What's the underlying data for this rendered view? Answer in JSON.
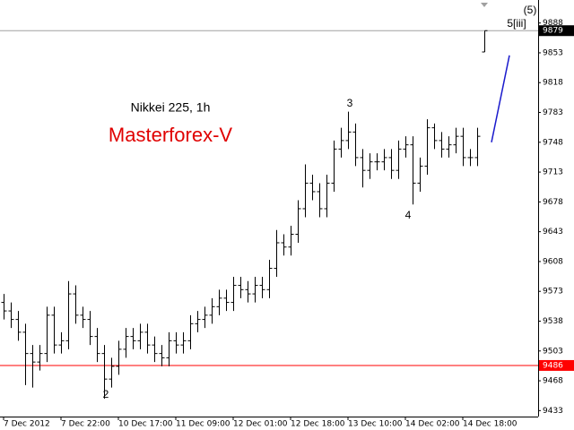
{
  "chart_data": {
    "type": "ohlc",
    "title": "Nikkei 225, 1h",
    "subtitle": "Masterforex-V",
    "annotations": [
      "2",
      "3",
      "4",
      "5[iii]",
      "(5)"
    ],
    "ylim": [
      9426,
      9915
    ],
    "yticks": [
      9888,
      9853,
      9818,
      9783,
      9748,
      9713,
      9678,
      9643,
      9608,
      9573,
      9538,
      9503,
      9468,
      9433
    ],
    "color": "#000000",
    "hline": {
      "value": 9486,
      "color": "#ff0000"
    },
    "last_line_color": "#a0a0a0",
    "forecast_line": {
      "color": "#1a1acc",
      "x": [
        68,
        70.5
      ],
      "y": [
        9748,
        9850
      ]
    },
    "categories": [
      "7 Dec 2012",
      null,
      null,
      null,
      null,
      null,
      null,
      null,
      "7 Dec 22:00",
      null,
      null,
      null,
      null,
      null,
      null,
      null,
      "10 Dec 17:00",
      null,
      null,
      null,
      null,
      null,
      null,
      null,
      "11 Dec 09:00",
      null,
      null,
      null,
      null,
      null,
      null,
      null,
      "12 Dec 01:00",
      null,
      null,
      null,
      null,
      null,
      null,
      null,
      "12 Dec 18:00",
      null,
      null,
      null,
      null,
      null,
      null,
      null,
      "13 Dec 10:00",
      null,
      null,
      null,
      null,
      null,
      null,
      null,
      "14 Dec 02:00",
      null,
      null,
      null,
      null,
      null,
      null,
      null,
      "14 Dec 18:00",
      null,
      null,
      null
    ],
    "open": [
      9560,
      9550,
      9540,
      9525,
      9500,
      9490,
      9500,
      9545,
      9510,
      9515,
      9570,
      9545,
      9540,
      9520,
      9500,
      9470,
      9485,
      9505,
      9520,
      9515,
      9525,
      9510,
      9500,
      9495,
      9515,
      9510,
      9515,
      9535,
      9540,
      9545,
      9555,
      9565,
      9560,
      9580,
      9575,
      9570,
      9580,
      9575,
      9600,
      9630,
      9625,
      9640,
      9670,
      9700,
      9690,
      9670,
      9700,
      9740,
      9750,
      9760,
      9730,
      9715,
      9725,
      9725,
      9730,
      9715,
      9740,
      9745,
      9700,
      9720,
      9765,
      9750,
      9740,
      9745,
      9755,
      9730,
      9730,
      9854
    ],
    "high": [
      9570,
      9560,
      9550,
      9535,
      9510,
      9510,
      9555,
      9555,
      9525,
      9585,
      9580,
      9555,
      9550,
      9530,
      9510,
      9495,
      9515,
      9530,
      9530,
      9535,
      9535,
      9520,
      9510,
      9525,
      9525,
      9525,
      9545,
      9550,
      9555,
      9565,
      9575,
      9575,
      9590,
      9590,
      9585,
      9590,
      9590,
      9610,
      9645,
      9640,
      9650,
      9680,
      9722,
      9710,
      9700,
      9710,
      9750,
      9765,
      9784,
      9770,
      9740,
      9735,
      9735,
      9740,
      9740,
      9750,
      9755,
      9755,
      9730,
      9775,
      9770,
      9760,
      9755,
      9765,
      9765,
      9740,
      9765,
      9879
    ],
    "low": [
      9540,
      9530,
      9515,
      9463,
      9460,
      9480,
      9490,
      9500,
      9500,
      9505,
      9535,
      9530,
      9510,
      9490,
      9447,
      9460,
      9475,
      9495,
      9505,
      9505,
      9500,
      9490,
      9485,
      9485,
      9500,
      9500,
      9505,
      9525,
      9530,
      9535,
      9545,
      9550,
      9550,
      9565,
      9560,
      9560,
      9565,
      9565,
      9590,
      9615,
      9615,
      9630,
      9660,
      9680,
      9660,
      9660,
      9690,
      9730,
      9740,
      9720,
      9695,
      9705,
      9715,
      9715,
      9705,
      9705,
      9730,
      9675,
      9690,
      9710,
      9740,
      9730,
      9730,
      9735,
      9720,
      9720,
      9720,
      9854
    ],
    "close": [
      9550,
      9540,
      9525,
      9500,
      9490,
      9500,
      9545,
      9510,
      9515,
      9570,
      9545,
      9540,
      9520,
      9500,
      9470,
      9485,
      9505,
      9520,
      9515,
      9525,
      9510,
      9500,
      9495,
      9515,
      9510,
      9515,
      9535,
      9540,
      9545,
      9555,
      9565,
      9560,
      9580,
      9575,
      9570,
      9580,
      9575,
      9600,
      9630,
      9625,
      9640,
      9670,
      9700,
      9690,
      9670,
      9700,
      9740,
      9750,
      9760,
      9730,
      9715,
      9725,
      9725,
      9730,
      9715,
      9740,
      9745,
      9700,
      9720,
      9765,
      9750,
      9740,
      9745,
      9755,
      9730,
      9730,
      9755,
      9879
    ]
  }
}
